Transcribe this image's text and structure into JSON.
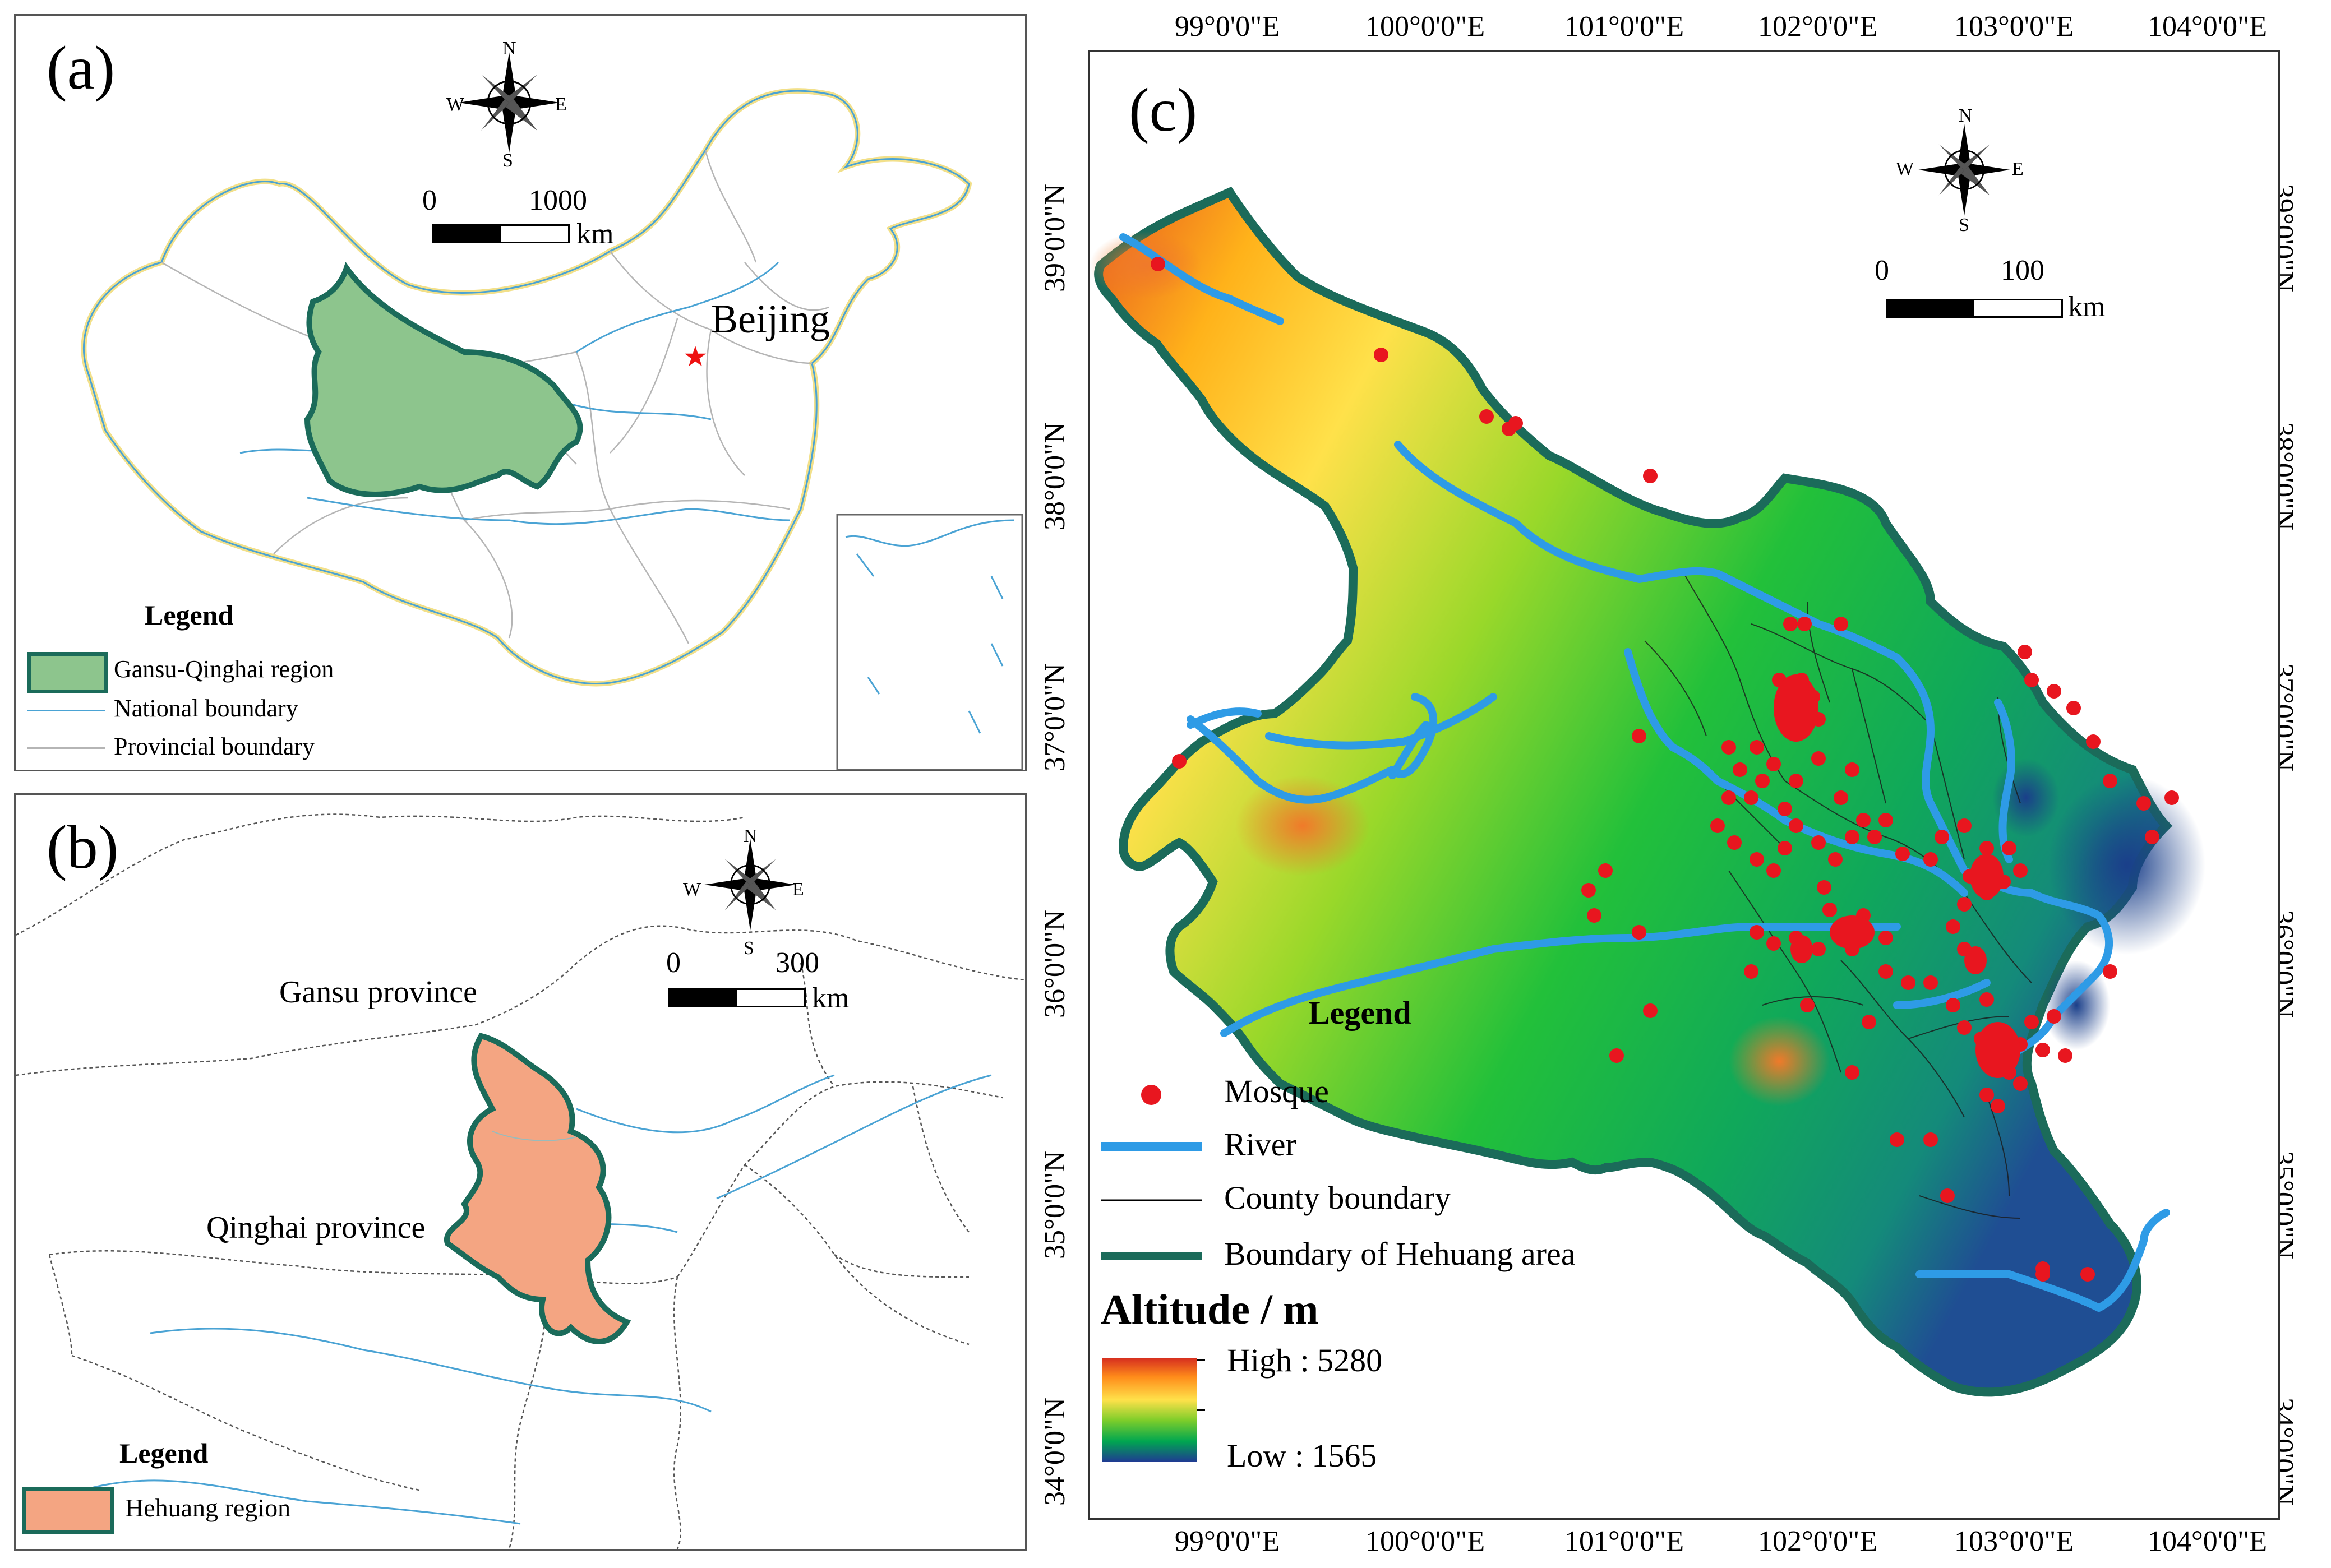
{
  "panel_a": {
    "label": "(a)",
    "north_arrow": {
      "n": "N",
      "s": "S",
      "e": "E",
      "w": "W"
    },
    "scale": {
      "zero": "0",
      "max": "1000",
      "unit": "km"
    },
    "city": "Beijing",
    "legend_title": "Legend",
    "legend": [
      {
        "label": "Gansu-Qinghai region",
        "color": "#8dc58d",
        "border": "#1b6b5a"
      },
      {
        "label": "National boundary",
        "color": "#4aa3d4"
      },
      {
        "label": "Provincial boundary",
        "color": "#b5b5b5"
      }
    ]
  },
  "panel_b": {
    "label": "(b)",
    "north_arrow": {
      "n": "N",
      "s": "S",
      "e": "E",
      "w": "W"
    },
    "scale": {
      "zero": "0",
      "max": "300",
      "unit": "km"
    },
    "gansu": "Gansu province",
    "qinghai": "Qinghai province",
    "legend_title": "Legend",
    "legend": [
      {
        "label": "Hehuang region",
        "color": "#f4a582",
        "border": "#1b6b5a"
      }
    ]
  },
  "panel_c": {
    "label": "(c)",
    "north_arrow": {
      "n": "N",
      "s": "S",
      "e": "E",
      "w": "W"
    },
    "scale": {
      "zero": "0",
      "max": "100",
      "unit": "km"
    },
    "lon_ticks": [
      "99°0'0\"E",
      "100°0'0\"E",
      "101°0'0\"E",
      "102°0'0\"E",
      "103°0'0\"E",
      "104°0'0\"E"
    ],
    "lat_ticks": [
      "39°0'0\"N",
      "38°0'0\"N",
      "37°0'0\"N",
      "36°0'0\"N",
      "35°0'0\"N",
      "34°0'0\"N"
    ],
    "legend_title": "Legend",
    "legend": [
      {
        "label": "Mosque",
        "color": "#e8161f"
      },
      {
        "label": "River",
        "color": "#2e9be6"
      },
      {
        "label": "County boundary",
        "color": "#000000"
      },
      {
        "label": "Boundary of Hehuang area",
        "color": "#1b6b5a"
      }
    ],
    "altitude_title": "Altitude / m",
    "altitude_high": "High : 5280",
    "altitude_low": "Low : 1565",
    "colors": {
      "high": "#d7301f",
      "mid_high": "#ffd700",
      "mid": "#7ccd2a",
      "low": "#00a650",
      "lowest": "#1f3a93"
    }
  }
}
